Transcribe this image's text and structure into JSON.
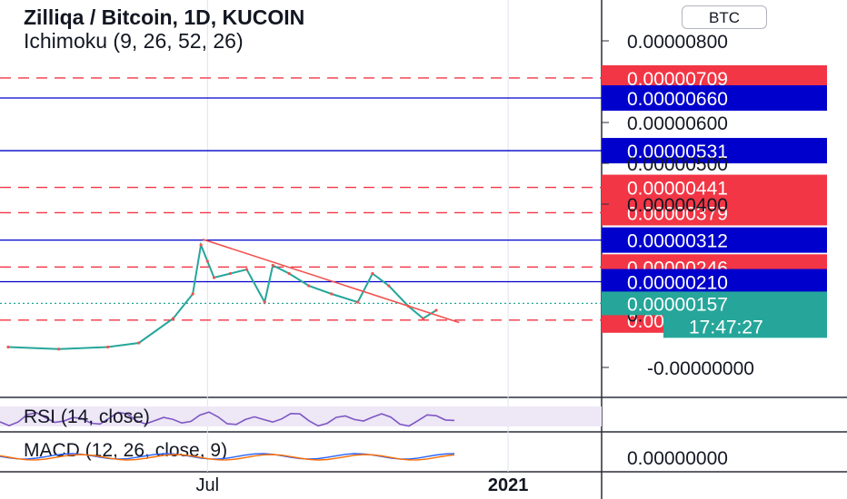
{
  "header": {
    "title": "Zilliqa / Bitcoin, 1D, KUCOIN",
    "indicator": "Ichimoku (9, 26, 52, 26)",
    "currency_button": "BTC"
  },
  "colors": {
    "price_up": "#26a69a",
    "price_down": "#ef5350",
    "red_line": "#f23645",
    "blue_line": "#0000cc",
    "current_price": "#26a69a",
    "rsi": "#7e57c2",
    "macd": "#2962ff",
    "signal": "#ff6d00",
    "axis_text": "#131722"
  },
  "chart_data": [
    {
      "type": "line",
      "name": "price",
      "x_ticks": [
        "Jul",
        "2021"
      ],
      "y_ticks": [
        "0.00000800",
        "0.00000600",
        "0.00000500",
        "0.00000400",
        "-0.00000000"
      ],
      "ylim": [
        -1e-07,
        8.3e-06
      ],
      "levels": [
        {
          "value": 7.09e-06,
          "label": "0.00000709",
          "color": "red",
          "style": "dashed"
        },
        {
          "value": 6.6e-06,
          "label": "0.00000660",
          "color": "blue",
          "style": "solid"
        },
        {
          "value": 5.31e-06,
          "label": "0.00000531",
          "color": "blue",
          "style": "solid"
        },
        {
          "value": 4.41e-06,
          "label": "0.00000441",
          "color": "red",
          "style": "dashed"
        },
        {
          "value": 3.79e-06,
          "label": "0.00000379",
          "color": "red",
          "style": "dashed"
        },
        {
          "value": 3.12e-06,
          "label": "0.00000312",
          "color": "blue",
          "style": "solid"
        },
        {
          "value": 2.46e-06,
          "label": "0.00000246",
          "color": "red",
          "style": "dashed"
        },
        {
          "value": 2.1e-06,
          "label": "0.00000210",
          "color": "blue",
          "style": "solid"
        },
        {
          "value": 1.16e-06,
          "label": "0.00000116",
          "color": "red",
          "style": "dashed"
        }
      ],
      "current_price": {
        "value": 1.57e-06,
        "label": "0.00000157"
      },
      "countdown": "17:47:27",
      "partial_tick_label": "0.",
      "trendline": {
        "from": [
          "2020-06-28",
          3.14e-06
        ],
        "to": [
          "2020-12-02",
          1.1e-06
        ]
      },
      "series": [
        {
          "x": [
            "2020-03-01",
            "2020-04-01",
            "2020-05-01",
            "2020-05-20",
            "2020-06-10",
            "2020-06-22",
            "2020-06-27",
            "2020-07-01",
            "2020-07-05",
            "2020-07-15",
            "2020-07-25",
            "2020-08-05",
            "2020-08-10",
            "2020-08-20",
            "2020-09-01",
            "2020-09-15",
            "2020-10-01",
            "2020-10-10",
            "2020-10-20",
            "2020-11-01",
            "2020-11-10",
            "2020-11-18"
          ],
          "y": [
            5e-07,
            4.5e-07,
            5e-07,
            6e-07,
            1.2e-06,
            1.8e-06,
            3e-06,
            2.6e-06,
            2.2e-06,
            2.3e-06,
            2.4e-06,
            1.6e-06,
            2.5e-06,
            2.3e-06,
            2e-06,
            1.8e-06,
            1.6e-06,
            2.3e-06,
            2e-06,
            1.5e-06,
            1.2e-06,
            1.4e-06
          ]
        }
      ]
    },
    {
      "type": "line",
      "name": "RSI",
      "title": "RSI (14, close)"
    },
    {
      "type": "line",
      "name": "MACD",
      "title": "MACD (12, 26, close, 9)",
      "y_ticks": [
        "0.00000000"
      ]
    }
  ]
}
